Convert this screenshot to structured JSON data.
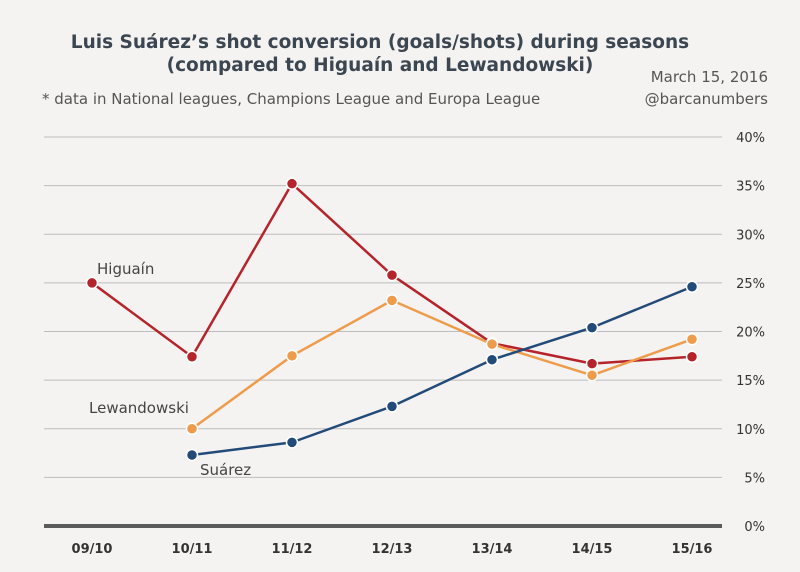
{
  "header": {
    "title_line1": "Luis Suárez’s shot conversion (goals/shots) during seasons",
    "title_line2": "(compared to Higuaín and Lewandowski)",
    "subtitle": "* data in National leagues, Champions League and Europa League",
    "date": "March 15, 2016",
    "handle": "@barcanumbers"
  },
  "chart_data": {
    "type": "line",
    "title": "Luis Suárez’s shot conversion (goals/shots) during seasons (compared to Higuaín and Lewandowski)",
    "subtitle": "* data in National leagues, Champions League and Europa League",
    "categories": [
      "09/10",
      "10/11",
      "11/12",
      "12/13",
      "13/14",
      "14/15",
      "15/16"
    ],
    "y_ticks": [
      "0%",
      "5%",
      "10%",
      "15%",
      "20%",
      "25%",
      "30%",
      "35%",
      "40%"
    ],
    "ylim": [
      0,
      40
    ],
    "grid": true,
    "series": [
      {
        "name": "Higuaín",
        "color": "#b5242a",
        "values": [
          25,
          17.4,
          35.2,
          25.8,
          18.8,
          16.7,
          17.4
        ]
      },
      {
        "name": "Lewandowski",
        "color": "#ee9b4b",
        "values": [
          null,
          10,
          17.5,
          23.2,
          18.7,
          15.5,
          19.2
        ]
      },
      {
        "name": "Suárez",
        "color": "#234b79",
        "values": [
          null,
          7.3,
          8.6,
          12.3,
          17.1,
          20.4,
          24.6
        ]
      }
    ]
  }
}
